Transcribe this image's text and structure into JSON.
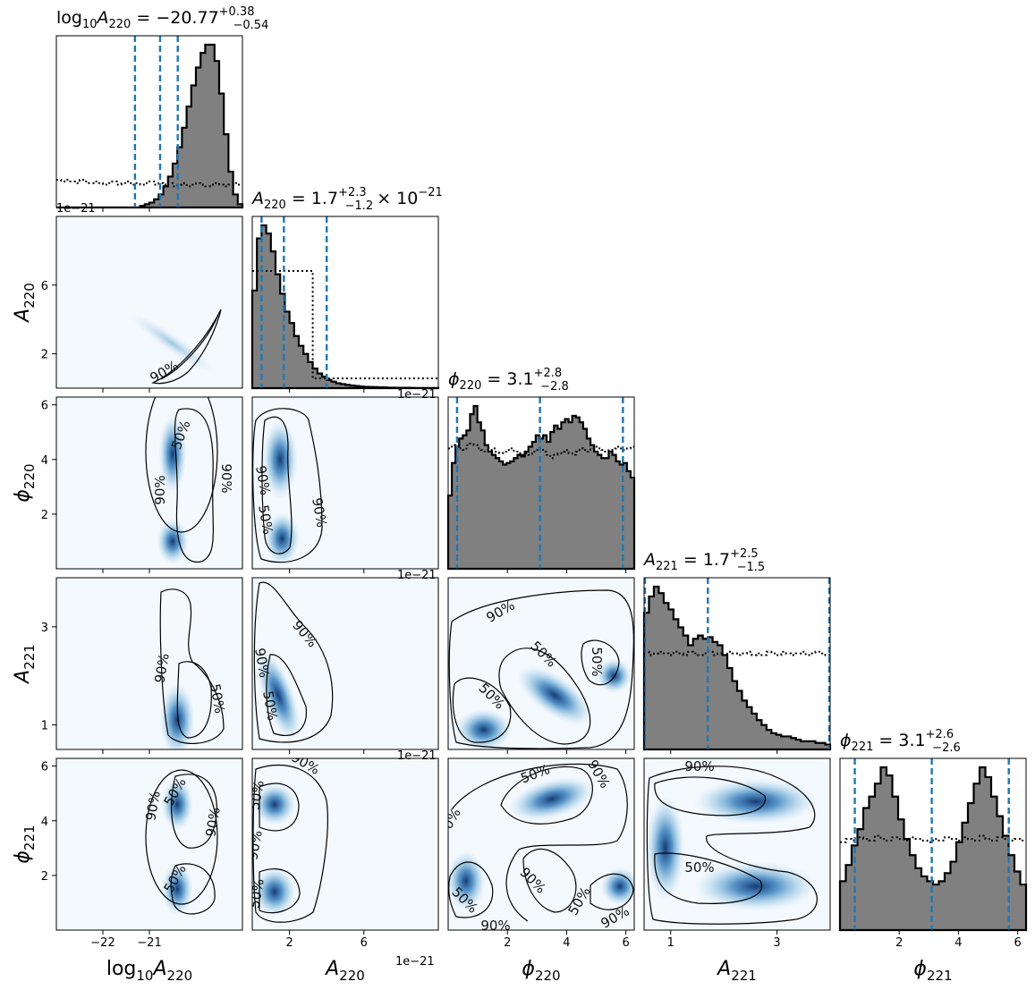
{
  "chart_data": {
    "type": "corner",
    "parameters": [
      {
        "key": "log10A220",
        "name": "log",
        "sub": "10",
        "sym": "A",
        "sym_sub": "220",
        "median": -20.77,
        "plus": "+0.38",
        "minus": "−0.54",
        "median_text": "−20.77",
        "range": [
          -23.0,
          -19.0
        ],
        "ticks": [
          -22,
          -21
        ],
        "tick_labels": [
          "−22",
          "−21"
        ],
        "quantiles": [
          -21.31,
          -20.77,
          -20.39
        ],
        "offset_text": ""
      },
      {
        "key": "A220",
        "sym": "A",
        "sym_sub": "220",
        "median": 1.7,
        "plus": "+2.3",
        "minus": "−1.2",
        "median_text": "1.7",
        "scale_text": "× 10",
        "scale_exp": "−21",
        "range": [
          0.0,
          10.0
        ],
        "ticks": [
          2,
          6
        ],
        "tick_labels": [
          "2",
          "6"
        ],
        "quantiles": [
          0.5,
          1.7,
          4.0
        ],
        "offset_text": "1e−21"
      },
      {
        "key": "phi220",
        "sym": "ϕ",
        "sym_sub": "220",
        "median": 3.1,
        "plus": "+2.8",
        "minus": "−2.8",
        "median_text": "3.1",
        "range": [
          0.0,
          6.283
        ],
        "ticks": [
          2,
          4,
          6
        ],
        "tick_labels": [
          "2",
          "4",
          "6"
        ],
        "quantiles": [
          0.3,
          3.1,
          5.9
        ],
        "offset_text": ""
      },
      {
        "key": "A221",
        "sym": "A",
        "sym_sub": "221",
        "median": 1.7,
        "plus": "+2.5",
        "minus": "−1.5",
        "median_text": "1.7",
        "range": [
          0.5,
          4.0
        ],
        "ticks": [
          1,
          3
        ],
        "tick_labels": [
          "1",
          "3"
        ],
        "quantiles": [
          0.2,
          1.7,
          4.2
        ],
        "offset_text": ""
      },
      {
        "key": "phi221",
        "sym": "ϕ",
        "sym_sub": "221",
        "median": 3.1,
        "plus": "+2.6",
        "minus": "−2.6",
        "median_text": "3.1",
        "range": [
          0.0,
          6.283
        ],
        "ticks": [
          2,
          4,
          6
        ],
        "tick_labels": [
          "2",
          "4",
          "6"
        ],
        "quantiles": [
          0.5,
          3.1,
          5.7
        ],
        "offset_text": ""
      }
    ],
    "contour_labels": [
      "50%",
      "90%"
    ],
    "histograms": [
      {
        "param": "log10A220",
        "values": [
          0,
          0,
          0,
          0,
          0,
          0,
          0,
          0,
          0,
          0,
          0,
          0,
          0,
          0,
          0,
          0,
          0,
          0,
          1,
          2,
          3,
          5,
          8,
          13,
          19,
          27,
          37,
          49,
          62,
          75,
          86,
          95,
          100,
          100,
          90,
          70,
          45,
          22,
          8,
          2
        ],
        "prior": [
          17,
          16,
          17,
          16,
          15,
          17,
          16,
          15,
          16,
          15,
          14,
          15,
          16,
          14,
          15,
          16,
          14,
          15,
          14,
          15,
          16,
          14,
          15,
          14,
          15,
          13,
          14,
          15,
          13,
          14,
          15,
          14,
          13,
          14,
          15,
          14,
          13,
          14,
          15,
          14
        ]
      },
      {
        "param": "A220",
        "values": [
          60,
          92,
          100,
          95,
          84,
          70,
          58,
          47,
          40,
          32,
          26,
          21,
          16,
          12,
          9,
          7,
          5,
          4,
          3,
          2.5,
          2,
          1.6,
          1.3,
          1,
          0.8,
          0.7,
          0.6,
          0.5,
          0.4,
          0.3,
          0.3,
          0.25,
          0.2,
          0.2,
          0.15,
          0.1,
          0.1,
          0.1,
          0.1,
          0.05
        ],
        "prior": [
          72,
          72,
          72,
          72,
          72,
          72,
          72,
          72,
          72,
          72,
          72,
          72,
          72,
          6,
          6,
          6,
          6,
          6,
          6,
          6,
          6,
          6,
          6,
          6,
          6,
          6,
          6,
          6,
          6,
          6,
          6,
          6,
          6,
          6,
          6,
          6,
          6,
          6,
          6,
          6
        ]
      },
      {
        "param": "phi220",
        "values": [
          45,
          65,
          75,
          80,
          82,
          85,
          95,
          100,
          90,
          85,
          76,
          72,
          70,
          68,
          66,
          64,
          65,
          66,
          68,
          70,
          69,
          72,
          75,
          78,
          82,
          80,
          82,
          78,
          84,
          88,
          86,
          90,
          92,
          90,
          94,
          93,
          90,
          86,
          80,
          76,
          72,
          70,
          68,
          68,
          72,
          70,
          66,
          64,
          65,
          60,
          56
        ],
        "prior": [
          74,
          76,
          75,
          74,
          73,
          76,
          77,
          76,
          74,
          73,
          72,
          73,
          74,
          72,
          71,
          72,
          73,
          74,
          72,
          71,
          70,
          71,
          70,
          72,
          73,
          74,
          72,
          70,
          68,
          70,
          71,
          72,
          73,
          71,
          70,
          72,
          74,
          73,
          72,
          74,
          75,
          74,
          73,
          72,
          73,
          74,
          75,
          74,
          73,
          74,
          75
        ]
      },
      {
        "param": "A221",
        "values": [
          84,
          94,
          100,
          96,
          90,
          86,
          80,
          75,
          70,
          64,
          68,
          70,
          68,
          69,
          66,
          64,
          58,
          50,
          42,
          36,
          30,
          26,
          22,
          18,
          15,
          12,
          10,
          9,
          8,
          8,
          7,
          6,
          5,
          5,
          5,
          4,
          4,
          3
        ],
        "prior": [
          60,
          58,
          59,
          60,
          59,
          58,
          60,
          59,
          58,
          60,
          59,
          58,
          59,
          60,
          58,
          59,
          58,
          60,
          59,
          58,
          59,
          60,
          58,
          59,
          58,
          60,
          59,
          58,
          60,
          59,
          58,
          59,
          60,
          58,
          59,
          60,
          59,
          58
        ]
      },
      {
        "param": "phi221",
        "values": [
          30,
          40,
          52,
          62,
          75,
          82,
          90,
          100,
          95,
          82,
          68,
          56,
          46,
          38,
          33,
          30,
          28,
          30,
          35,
          42,
          54,
          66,
          78,
          90,
          100,
          94,
          82,
          70,
          58,
          46,
          36,
          28
        ],
        "prior": [
          54,
          56,
          55,
          57,
          56,
          55,
          58,
          56,
          55,
          57,
          56,
          55,
          57,
          56,
          55,
          54,
          56,
          55,
          57,
          56,
          55,
          57,
          56,
          55,
          58,
          56,
          55,
          57,
          56,
          55,
          56,
          55
        ]
      }
    ]
  }
}
